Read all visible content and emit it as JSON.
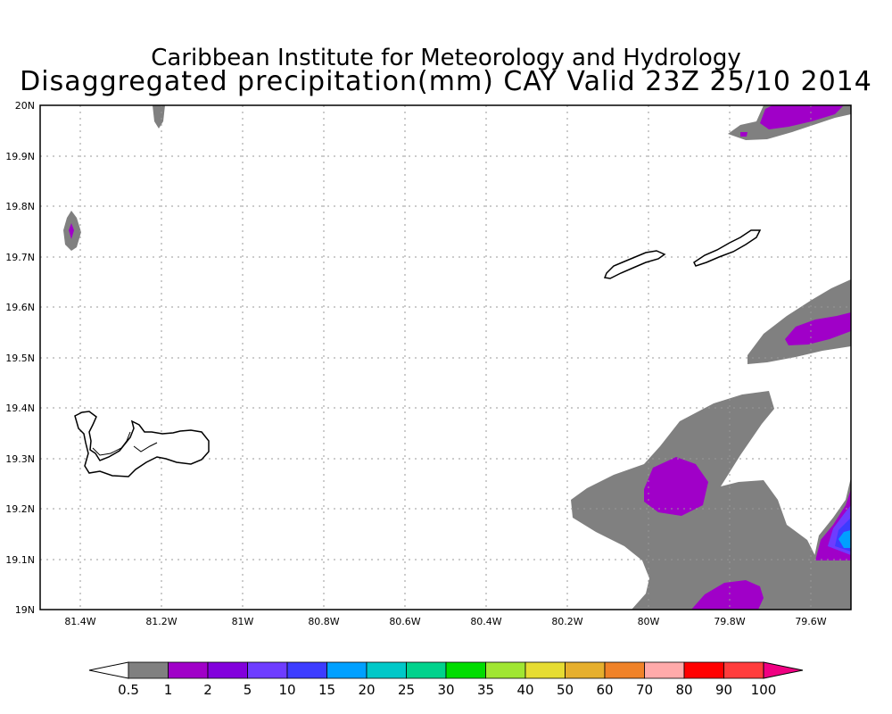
{
  "header": {
    "line1": "Caribbean Institute for Meteorology and Hydrology",
    "line2": "Disaggregated precipitation(mm) CAY Valid 23Z 25/10 2014"
  },
  "map": {
    "lon_range": [
      -81.5,
      -79.5
    ],
    "lat_range": [
      19.0,
      20.0
    ],
    "grid": "dotted",
    "x_ticks": [
      "81.4W",
      "81.2W",
      "81W",
      "80.8W",
      "80.6W",
      "80.4W",
      "80.2W",
      "80W",
      "79.8W",
      "79.6W"
    ],
    "y_ticks": [
      "19N",
      "19.1N",
      "19.2N",
      "19.3N",
      "19.4N",
      "19.5N",
      "19.6N",
      "19.7N",
      "19.8N",
      "19.9N",
      "20N"
    ],
    "features": [
      "Grand Cayman",
      "Little Cayman",
      "Cayman Brac"
    ]
  },
  "colorbar": {
    "labels": [
      "0.5",
      "1",
      "2",
      "5",
      "10",
      "15",
      "20",
      "25",
      "30",
      "35",
      "40",
      "50",
      "60",
      "70",
      "80",
      "90",
      "100"
    ],
    "colors": [
      "#ffffff",
      "#808080",
      "#a000c8",
      "#8200dc",
      "#6e3cff",
      "#3c3cff",
      "#00a0ff",
      "#00c8c8",
      "#00d28c",
      "#00dc00",
      "#a0e632",
      "#e6dc32",
      "#e6af2d",
      "#f08228",
      "#ffaaaa",
      "#ff0000",
      "#ff3c3c",
      "#f00082"
    ]
  }
}
